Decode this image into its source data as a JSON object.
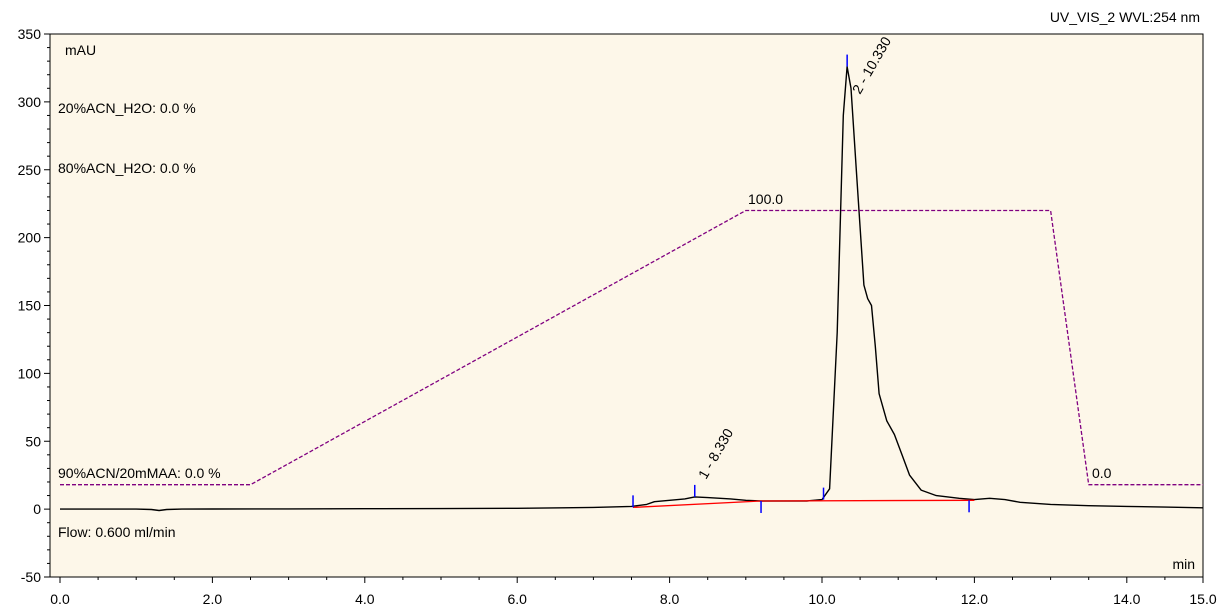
{
  "chart_data": {
    "type": "line",
    "title": "UV_VIS_2 WVL:254 nm",
    "ylabel": "mAU",
    "xlabel": "min",
    "xlim": [
      0,
      15
    ],
    "ylim": [
      -50,
      350
    ],
    "x_ticks": [
      "0.0",
      "2.0",
      "4.0",
      "6.0",
      "8.0",
      "10.0",
      "12.0",
      "14.0",
      "15.0"
    ],
    "x_tick_values": [
      0,
      2,
      4,
      6,
      8,
      10,
      12,
      14,
      15
    ],
    "y_ticks": [
      "-50",
      "0",
      "50",
      "100",
      "150",
      "200",
      "250",
      "300",
      "350"
    ],
    "y_tick_values": [
      -50,
      0,
      50,
      100,
      150,
      200,
      250,
      300,
      350
    ],
    "annotations": {
      "eluent1": "20%ACN_H2O: 0.0 %",
      "eluent2": "80%ACN_H2O: 0.0 %",
      "eluent3": "90%ACN/20mMAA: 0.0 %",
      "flow": "Flow: 0.600 ml/min",
      "gradient_top": "100.0",
      "gradient_bottom": "0.0"
    },
    "peaks": [
      {
        "label": "1 - 8.330",
        "rt": 8.33,
        "height": 9
      },
      {
        "label": "2 - 10.330",
        "rt": 10.33,
        "height": 326
      }
    ],
    "series": [
      {
        "color": "#000000",
        "x": [
          0.0,
          1.0,
          1.2,
          1.3,
          1.4,
          1.6,
          2.0,
          3.0,
          4.0,
          5.0,
          6.0,
          6.6,
          7.0,
          7.5,
          7.7,
          7.8,
          8.0,
          8.2,
          8.33,
          8.5,
          8.8,
          9.0,
          9.2,
          9.5,
          9.8,
          10.0,
          10.1,
          10.2,
          10.28,
          10.33,
          10.38,
          10.45,
          10.55,
          10.6,
          10.65,
          10.7,
          10.75,
          10.85,
          10.95,
          11.05,
          11.15,
          11.3,
          11.5,
          11.8,
          11.9,
          12.0,
          12.2,
          12.4,
          12.6,
          13.0,
          13.5,
          14.0,
          14.5,
          15.0
        ],
        "y": [
          0.0,
          0.0,
          -0.3,
          -1.0,
          -0.3,
          0.0,
          0.1,
          0.2,
          0.3,
          0.4,
          0.6,
          1.0,
          1.3,
          2.0,
          3.5,
          5.5,
          6.5,
          7.5,
          9.0,
          8.5,
          7.5,
          6.5,
          6.0,
          6.0,
          6.0,
          7.0,
          15.0,
          130.0,
          290.0,
          326.0,
          310.0,
          250.0,
          165.0,
          155.0,
          150.0,
          120.0,
          85.0,
          65.0,
          55.0,
          40.0,
          25.0,
          14.0,
          10.0,
          8.0,
          7.5,
          7.0,
          8.0,
          7.0,
          5.0,
          3.5,
          2.5,
          2.0,
          1.5,
          1.0
        ]
      },
      {
        "color": "#800080",
        "x": [
          0.0,
          2.5,
          9.0,
          13.0,
          13.5,
          15.0
        ],
        "y": [
          18.0,
          18.0,
          220.0,
          220.0,
          18.0,
          18.0
        ]
      },
      {
        "color": "#ff0000",
        "x": [
          7.52,
          9.2,
          12.0
        ],
        "y": [
          1.3,
          6.0,
          6.5
        ]
      }
    ],
    "peak_markers": [
      {
        "x": 7.52,
        "y": 1.3,
        "dir": "up"
      },
      {
        "x": 8.33,
        "y": 9.0,
        "dir": "up"
      },
      {
        "x": 9.2,
        "y": 6.0,
        "dir": "down"
      },
      {
        "x": 10.02,
        "y": 7.0,
        "dir": "up"
      },
      {
        "x": 10.33,
        "y": 326.0,
        "dir": "up"
      },
      {
        "x": 11.93,
        "y": 6.5,
        "dir": "down"
      }
    ]
  }
}
